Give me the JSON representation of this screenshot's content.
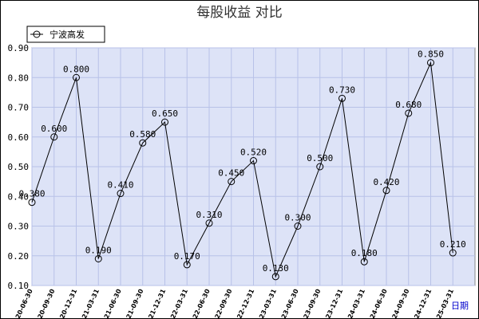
{
  "chart_data": {
    "type": "line",
    "title": "每股收益  对比",
    "xlabel": "日期",
    "ylabel": "",
    "ylim": [
      0.1,
      0.9
    ],
    "yticks": [
      "0.10",
      "0.20",
      "0.30",
      "0.40",
      "0.50",
      "0.60",
      "0.70",
      "0.80",
      "0.90"
    ],
    "grid": true,
    "legend_position": "top-left",
    "categories": [
      "2020-06-30",
      "2020-09-30",
      "2020-12-31",
      "2021-03-31",
      "2021-06-30",
      "2021-09-30",
      "2021-12-31",
      "2022-03-31",
      "2022-06-30",
      "2022-09-30",
      "2022-12-31",
      "2023-03-31",
      "2023-06-30",
      "2023-09-30",
      "2023-12-31",
      "2024-03-31",
      "2024-06-30",
      "2024-09-30",
      "2024-12-31",
      "2025-03-31"
    ],
    "series": [
      {
        "name": "宁波高发",
        "values": [
          0.38,
          0.6,
          0.8,
          0.19,
          0.41,
          0.58,
          0.65,
          0.17,
          0.31,
          0.45,
          0.52,
          0.13,
          0.3,
          0.5,
          0.73,
          0.18,
          0.42,
          0.68,
          0.85,
          0.21
        ],
        "labels": [
          "0.380",
          "0.600",
          "0.800",
          "0.190",
          "0.410",
          "0.580",
          "0.650",
          "0.170",
          "0.310",
          "0.450",
          "0.520",
          "0.130",
          "0.300",
          "0.500",
          "0.730",
          "0.180",
          "0.420",
          "0.680",
          "0.850",
          "0.210"
        ]
      }
    ]
  },
  "colors": {
    "plot_bg": "#dde3f7",
    "grid": "#b8c2e8",
    "line": "#000000",
    "xlabel": "#0000cc"
  }
}
